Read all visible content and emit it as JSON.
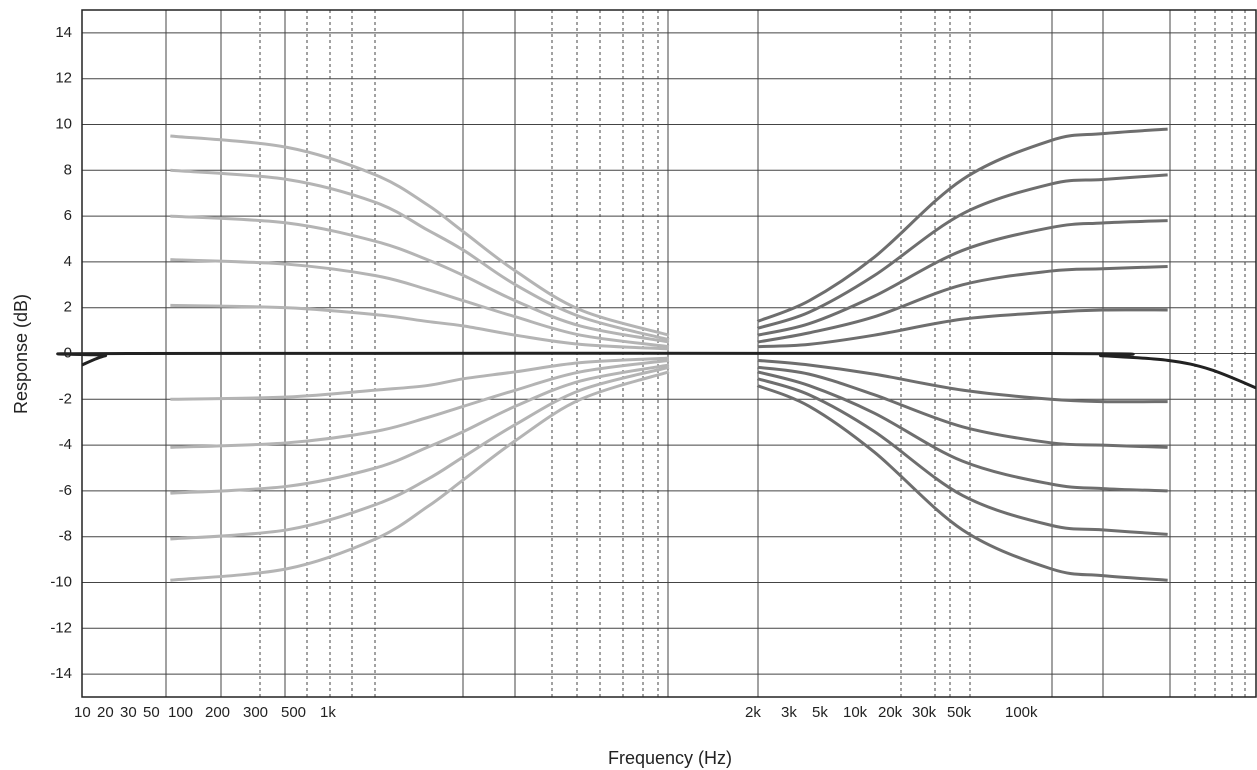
{
  "chart_data": {
    "type": "line",
    "x_label": "Frequency (Hz)",
    "y_label": "Response (dB)",
    "xscale": "log",
    "xlim": [
      10,
      100000
    ],
    "ylim": [
      -15,
      15
    ],
    "yticks": [
      14,
      12,
      10,
      8,
      6,
      4,
      2,
      0,
      -2,
      -4,
      -6,
      -8,
      -10,
      -12,
      -14
    ],
    "grid": true,
    "x_tick_labels": [
      "10",
      "20",
      "30",
      "50",
      "100",
      "200",
      "300",
      "500",
      "1k",
      "2k",
      "3k",
      "5k",
      "10k",
      "20k",
      "30k",
      "50k",
      "100k"
    ],
    "series": [
      {
        "color": "#b4b4b4",
        "x": [
          20,
          50,
          100,
          150,
          200,
          300,
          500,
          1000
        ],
        "values": [
          9.5,
          9.0,
          7.8,
          6.5,
          5.3,
          3.6,
          1.9,
          0.8
        ]
      },
      {
        "color": "#b4b4b4",
        "x": [
          20,
          50,
          100,
          150,
          200,
          300,
          500,
          1000
        ],
        "values": [
          8,
          7.6,
          6.6,
          5.4,
          4.5,
          3.0,
          1.6,
          0.6
        ]
      },
      {
        "color": "#b4b4b4",
        "x": [
          20,
          50,
          100,
          150,
          200,
          300,
          500,
          1000
        ],
        "values": [
          6,
          5.7,
          4.9,
          4.1,
          3.4,
          2.3,
          1.2,
          0.5
        ]
      },
      {
        "color": "#b4b4b4",
        "x": [
          20,
          50,
          100,
          150,
          200,
          300,
          500,
          1000
        ],
        "values": [
          4.1,
          3.9,
          3.4,
          2.8,
          2.3,
          1.6,
          0.8,
          0.3
        ]
      },
      {
        "color": "#b4b4b4",
        "x": [
          20,
          50,
          100,
          150,
          200,
          300,
          500,
          1000
        ],
        "values": [
          2.1,
          2.0,
          1.7,
          1.4,
          1.2,
          0.8,
          0.4,
          0.2
        ]
      },
      {
        "color": "#b4b4b4",
        "x": [
          20,
          50,
          100,
          150,
          200,
          300,
          500,
          1000
        ],
        "values": [
          -2,
          -1.9,
          -1.6,
          -1.4,
          -1.1,
          -0.8,
          -0.4,
          -0.2
        ]
      },
      {
        "color": "#b4b4b4",
        "x": [
          20,
          50,
          100,
          150,
          200,
          300,
          500,
          1000
        ],
        "values": [
          -4.1,
          -3.9,
          -3.4,
          -2.8,
          -2.3,
          -1.6,
          -0.8,
          -0.3
        ]
      },
      {
        "color": "#b4b4b4",
        "x": [
          20,
          50,
          100,
          150,
          200,
          300,
          500,
          1000
        ],
        "values": [
          -6.1,
          -5.8,
          -5.0,
          -4.1,
          -3.4,
          -2.3,
          -1.2,
          -0.5
        ]
      },
      {
        "color": "#b4b4b4",
        "x": [
          20,
          50,
          100,
          150,
          200,
          300,
          500,
          1000
        ],
        "values": [
          -8.1,
          -7.7,
          -6.6,
          -5.5,
          -4.5,
          -3.1,
          -1.6,
          -0.6
        ]
      },
      {
        "color": "#b4b4b4",
        "x": [
          20,
          50,
          100,
          150,
          200,
          300,
          500,
          1000
        ],
        "values": [
          -9.9,
          -9.4,
          -8.1,
          -6.7,
          -5.5,
          -3.8,
          -2.0,
          -0.8
        ]
      },
      {
        "color": "#6e6e6e",
        "x": [
          2000,
          3000,
          5000,
          10000,
          20000,
          30000,
          50000
        ],
        "values": [
          1.4,
          2.3,
          4.2,
          7.6,
          9.3,
          9.6,
          9.8
        ]
      },
      {
        "color": "#6e6e6e",
        "x": [
          2000,
          3000,
          5000,
          10000,
          20000,
          30000,
          50000
        ],
        "values": [
          1.1,
          1.8,
          3.4,
          6.1,
          7.4,
          7.6,
          7.8
        ]
      },
      {
        "color": "#6e6e6e",
        "x": [
          2000,
          3000,
          5000,
          10000,
          20000,
          30000,
          50000
        ],
        "values": [
          0.8,
          1.3,
          2.5,
          4.5,
          5.5,
          5.7,
          5.8
        ]
      },
      {
        "color": "#6e6e6e",
        "x": [
          2000,
          3000,
          5000,
          10000,
          20000,
          30000,
          50000
        ],
        "values": [
          0.5,
          0.9,
          1.6,
          3.0,
          3.6,
          3.7,
          3.8
        ]
      },
      {
        "color": "#6e6e6e",
        "x": [
          2000,
          3000,
          5000,
          10000,
          20000,
          30000,
          50000
        ],
        "values": [
          0.3,
          0.4,
          0.8,
          1.5,
          1.8,
          1.9,
          1.9
        ]
      },
      {
        "color": "#6e6e6e",
        "x": [
          2000,
          3000,
          5000,
          10000,
          20000,
          30000,
          50000
        ],
        "values": [
          -0.3,
          -0.5,
          -0.9,
          -1.6,
          -2.0,
          -2.1,
          -2.1
        ]
      },
      {
        "color": "#6e6e6e",
        "x": [
          2000,
          3000,
          5000,
          10000,
          20000,
          30000,
          50000
        ],
        "values": [
          -0.6,
          -0.9,
          -1.8,
          -3.2,
          -3.9,
          -4.0,
          -4.1
        ]
      },
      {
        "color": "#6e6e6e",
        "x": [
          2000,
          3000,
          5000,
          10000,
          20000,
          30000,
          50000
        ],
        "values": [
          -0.8,
          -1.4,
          -2.6,
          -4.7,
          -5.7,
          -5.9,
          -6.0
        ]
      },
      {
        "color": "#6e6e6e",
        "x": [
          2000,
          3000,
          5000,
          10000,
          20000,
          30000,
          50000
        ],
        "values": [
          -1.1,
          -1.8,
          -3.4,
          -6.2,
          -7.5,
          -7.7,
          -7.9
        ]
      },
      {
        "color": "#6e6e6e",
        "x": [
          2000,
          3000,
          5000,
          10000,
          20000,
          30000,
          50000
        ],
        "values": [
          -1.4,
          -2.3,
          -4.3,
          -7.7,
          -9.4,
          -9.7,
          -9.9
        ]
      },
      {
        "color": "#222222",
        "x": [
          10,
          12,
          15,
          20000,
          30000,
          50000,
          70000,
          100000
        ],
        "values": [
          -0.5,
          -0.1,
          0,
          0,
          -0.1,
          -0.3,
          -0.7,
          -1.5
        ]
      }
    ]
  }
}
